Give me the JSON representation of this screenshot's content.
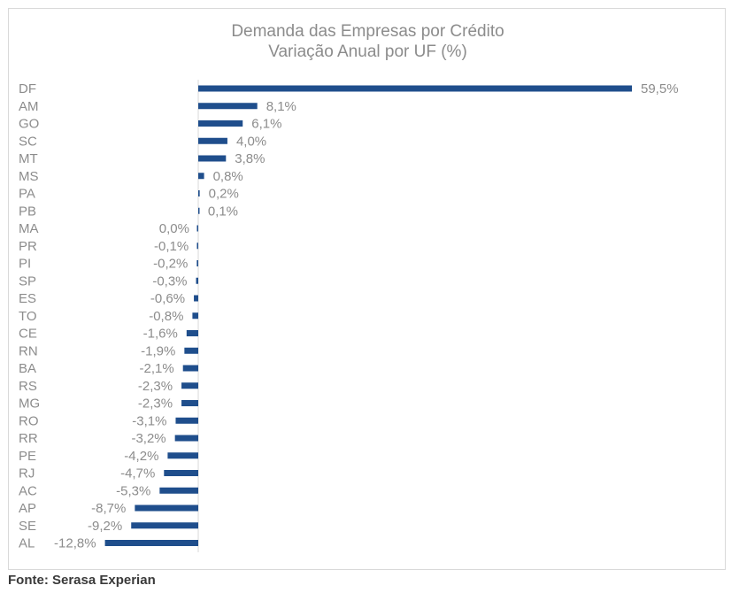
{
  "chart_data": {
    "type": "bar",
    "orientation": "horizontal",
    "title": "Demanda das Empresas por Crédito",
    "subtitle": "Variação Anual por UF (%)",
    "categories": [
      "DF",
      "AM",
      "GO",
      "SC",
      "MT",
      "MS",
      "PA",
      "PB",
      "MA",
      "PR",
      "PI",
      "SP",
      "ES",
      "TO",
      "CE",
      "RN",
      "BA",
      "RS",
      "MG",
      "RO",
      "RR",
      "PE",
      "RJ",
      "AC",
      "AP",
      "SE",
      "AL"
    ],
    "values": [
      59.5,
      8.1,
      6.1,
      4.0,
      3.8,
      0.8,
      0.2,
      0.1,
      0.0,
      -0.1,
      -0.2,
      -0.3,
      -0.6,
      -0.8,
      -1.6,
      -1.9,
      -2.1,
      -2.3,
      -2.3,
      -3.1,
      -3.2,
      -4.2,
      -4.7,
      -5.3,
      -8.7,
      -9.2,
      -12.8
    ],
    "data_labels": [
      "59,5%",
      "8,1%",
      "6,1%",
      "4,0%",
      "3,8%",
      "0,8%",
      "0,2%",
      "0,1%",
      "0,0%",
      "-0,1%",
      "-0,2%",
      "-0,3%",
      "-0,6%",
      "-0,8%",
      "-1,6%",
      "-1,9%",
      "-2,1%",
      "-2,3%",
      "-2,3%",
      "-3,1%",
      "-3,2%",
      "-4,2%",
      "-4,7%",
      "-5,3%",
      "-8,7%",
      "-9,2%",
      "-12,8%"
    ],
    "xlim": [
      -15,
      60
    ],
    "grid": false,
    "legend": "none",
    "bar_color": "#1f4e8c",
    "label_color": "#8c8c8c"
  },
  "footer": {
    "source": "Fonte: Serasa Experian"
  }
}
